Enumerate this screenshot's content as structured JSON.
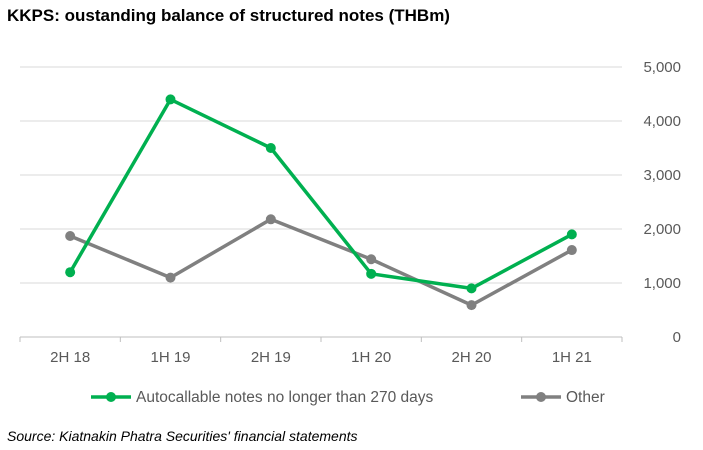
{
  "chart_data": {
    "type": "line",
    "title": "KKPS: oustanding balance of structured notes (THBm)",
    "source": "Source: Kiatnakin Phatra Securities' financial statements",
    "categories": [
      "2H 18",
      "1H 19",
      "2H 19",
      "1H 20",
      "2H 20",
      "1H 21"
    ],
    "yticks": [
      "0",
      "1,000",
      "2,000",
      "3,000",
      "4,000",
      "5,000"
    ],
    "ylim": [
      0,
      5000
    ],
    "y_axis_side": "right",
    "grid": true,
    "legend_position": "bottom",
    "series": [
      {
        "name": "Autocallable notes no longer than 270 days",
        "color": "#00b050",
        "values": [
          1200,
          4400,
          3500,
          1170,
          900,
          1900
        ]
      },
      {
        "name": "Other",
        "color": "#808080",
        "values": [
          1870,
          1100,
          2180,
          1440,
          590,
          1610
        ]
      }
    ]
  }
}
